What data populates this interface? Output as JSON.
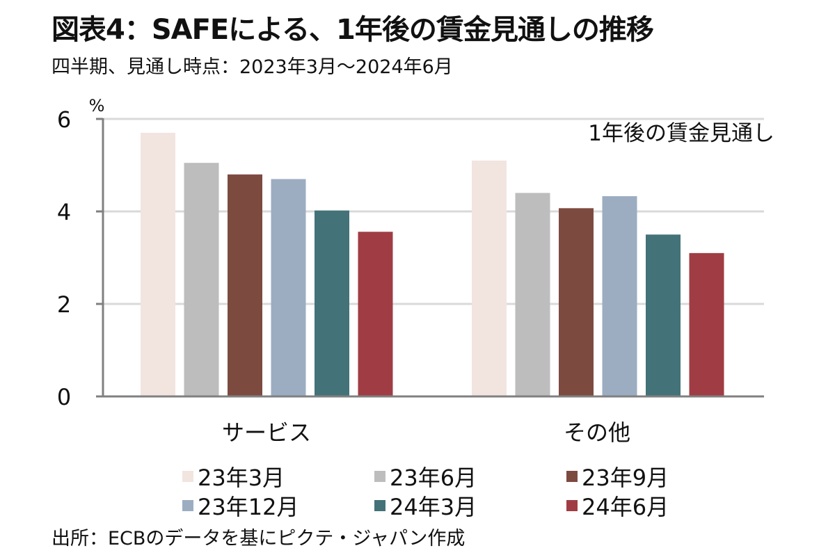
{
  "title": "図表4：SAFEによる、1年後の賃金見通しの推移",
  "subtitle": "四半期、見通し時点：2023年3月～2024年6月",
  "source": "出所：ECBのデータを基にピクテ・ジャパン作成",
  "chart_data": {
    "type": "bar",
    "title": "図表4：SAFEによる、1年後の賃金見通しの推移",
    "subtitle": "四半期、見通し時点：2023年3月～2024年6月",
    "annotation": "1年後の賃金見通し",
    "ylabel": "%",
    "xlabel": "",
    "ylim": [
      0,
      6
    ],
    "yticks": [
      "0",
      "2",
      "4",
      "6"
    ],
    "grid": true,
    "legend_position": "bottom",
    "categories": [
      "サービス",
      "その他"
    ],
    "series": [
      {
        "name": "23年3月",
        "color": "#f2e4df",
        "values": [
          5.7,
          5.1
        ]
      },
      {
        "name": "23年6月",
        "color": "#bdbdbd",
        "values": [
          5.05,
          4.4
        ]
      },
      {
        "name": "23年9月",
        "color": "#7d4a40",
        "values": [
          4.8,
          4.07
        ]
      },
      {
        "name": "23年12月",
        "color": "#9cadc1",
        "values": [
          4.7,
          4.33
        ]
      },
      {
        "name": "24年3月",
        "color": "#437278",
        "values": [
          4.02,
          3.5
        ]
      },
      {
        "name": "24年6月",
        "color": "#a03d44",
        "values": [
          3.56,
          3.1
        ]
      }
    ]
  }
}
